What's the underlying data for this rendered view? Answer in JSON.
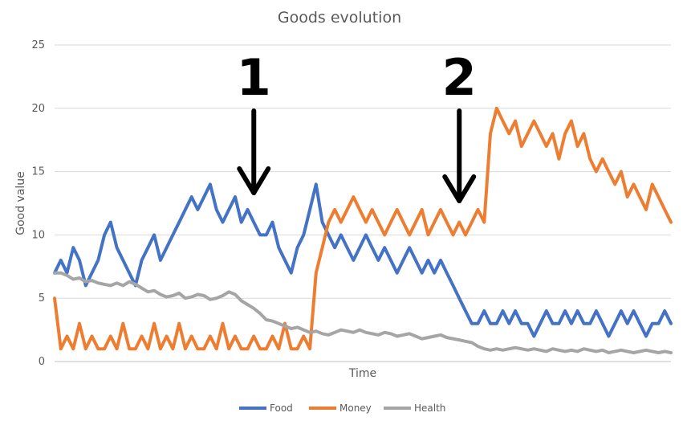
{
  "chart_data": {
    "type": "line",
    "title": "Goods evolution",
    "xlabel": "Time",
    "ylabel": "Good value",
    "ylim": [
      0,
      25
    ],
    "yticks": [
      "0",
      "5",
      "10",
      "15",
      "20",
      "25"
    ],
    "grid": true,
    "legend_position": "bottom",
    "x_points": 100,
    "series": [
      {
        "name": "Food",
        "color": "#4472C4",
        "values": [
          7,
          8,
          7,
          9,
          8,
          6,
          7,
          8,
          10,
          11,
          9,
          8,
          7,
          6,
          8,
          9,
          10,
          8,
          9,
          10,
          11,
          12,
          13,
          12,
          13,
          14,
          12,
          11,
          12,
          13,
          11,
          12,
          11,
          10,
          10,
          11,
          9,
          8,
          7,
          9,
          10,
          12,
          14,
          11,
          10,
          9,
          10,
          9,
          8,
          9,
          10,
          9,
          8,
          9,
          8,
          7,
          8,
          9,
          8,
          7,
          8,
          7,
          8,
          7,
          6,
          5,
          4,
          3,
          3,
          4,
          3,
          3,
          4,
          3,
          4,
          3,
          3,
          2,
          3,
          4,
          3,
          3,
          4,
          3,
          4,
          3,
          3,
          4,
          3,
          2,
          3,
          4,
          3,
          4,
          3,
          2,
          3,
          3,
          4,
          3
        ]
      },
      {
        "name": "Money",
        "color": "#ED7D31",
        "values": [
          5,
          1,
          2,
          1,
          3,
          1,
          2,
          1,
          1,
          2,
          1,
          3,
          1,
          1,
          2,
          1,
          3,
          1,
          2,
          1,
          3,
          1,
          2,
          1,
          1,
          2,
          1,
          3,
          1,
          2,
          1,
          1,
          2,
          1,
          1,
          2,
          1,
          3,
          1,
          1,
          2,
          1,
          7,
          9,
          11,
          12,
          11,
          12,
          13,
          12,
          11,
          12,
          11,
          10,
          11,
          12,
          11,
          10,
          11,
          12,
          10,
          11,
          12,
          11,
          10,
          11,
          10,
          11,
          12,
          11,
          18,
          20,
          19,
          18,
          19,
          17,
          18,
          19,
          18,
          17,
          18,
          16,
          18,
          19,
          17,
          18,
          16,
          15,
          16,
          15,
          14,
          15,
          13,
          14,
          13,
          12,
          14,
          13,
          12,
          11
        ]
      },
      {
        "name": "Health",
        "color": "#A5A5A5",
        "values": [
          7,
          7,
          6.8,
          6.5,
          6.6,
          6.3,
          6.4,
          6.2,
          6.1,
          6,
          6.2,
          6,
          6.3,
          6.1,
          5.8,
          5.5,
          5.6,
          5.3,
          5.1,
          5.2,
          5.4,
          5,
          5.1,
          5.3,
          5.2,
          4.9,
          5,
          5.2,
          5.5,
          5.3,
          4.8,
          4.5,
          4.2,
          3.8,
          3.3,
          3.2,
          3,
          2.8,
          2.6,
          2.7,
          2.5,
          2.3,
          2.4,
          2.2,
          2.1,
          2.3,
          2.5,
          2.4,
          2.3,
          2.5,
          2.3,
          2.2,
          2.1,
          2.3,
          2.2,
          2,
          2.1,
          2.2,
          2,
          1.8,
          1.9,
          2,
          2.1,
          1.9,
          1.8,
          1.7,
          1.6,
          1.5,
          1.2,
          1,
          0.9,
          1,
          0.9,
          1,
          1.1,
          1,
          0.9,
          1,
          0.9,
          0.8,
          1,
          0.9,
          0.8,
          0.9,
          0.8,
          1,
          0.9,
          0.8,
          0.9,
          0.7,
          0.8,
          0.9,
          0.8,
          0.7,
          0.8,
          0.9,
          0.8,
          0.7,
          0.8,
          0.7
        ]
      }
    ],
    "annotations": [
      {
        "label": "1",
        "x_index": 32
      },
      {
        "label": "2",
        "x_index": 65
      }
    ]
  }
}
